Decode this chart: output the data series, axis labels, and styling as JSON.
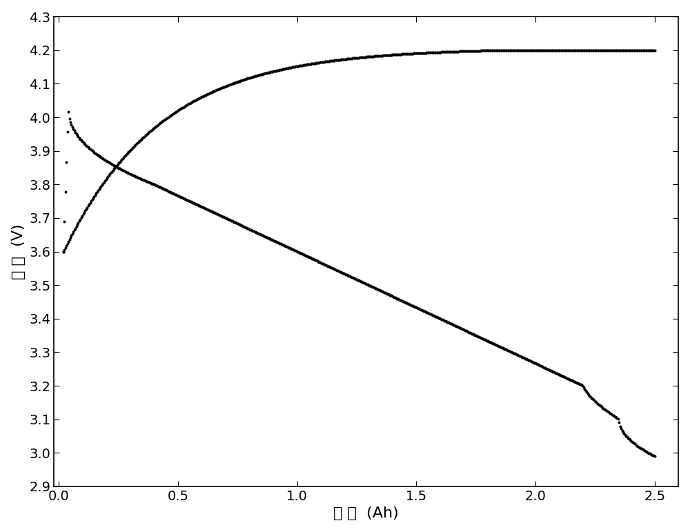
{
  "title": "",
  "xlabel": "容 量  (Ah)",
  "ylabel": "电 压  (V)",
  "xlim": [
    -0.02,
    2.6
  ],
  "ylim": [
    2.9,
    4.3
  ],
  "xticks": [
    0.0,
    0.5,
    1.0,
    1.5,
    2.0,
    2.5
  ],
  "yticks": [
    2.9,
    3.0,
    3.1,
    3.2,
    3.3,
    3.4,
    3.5,
    3.6,
    3.7,
    3.8,
    3.9,
    4.0,
    4.1,
    4.2,
    4.3
  ],
  "dot_color": "#000000",
  "dot_size": 3.5,
  "background_color": "#ffffff",
  "xlabel_fontsize": 16,
  "ylabel_fontsize": 16,
  "tick_fontsize": 14
}
